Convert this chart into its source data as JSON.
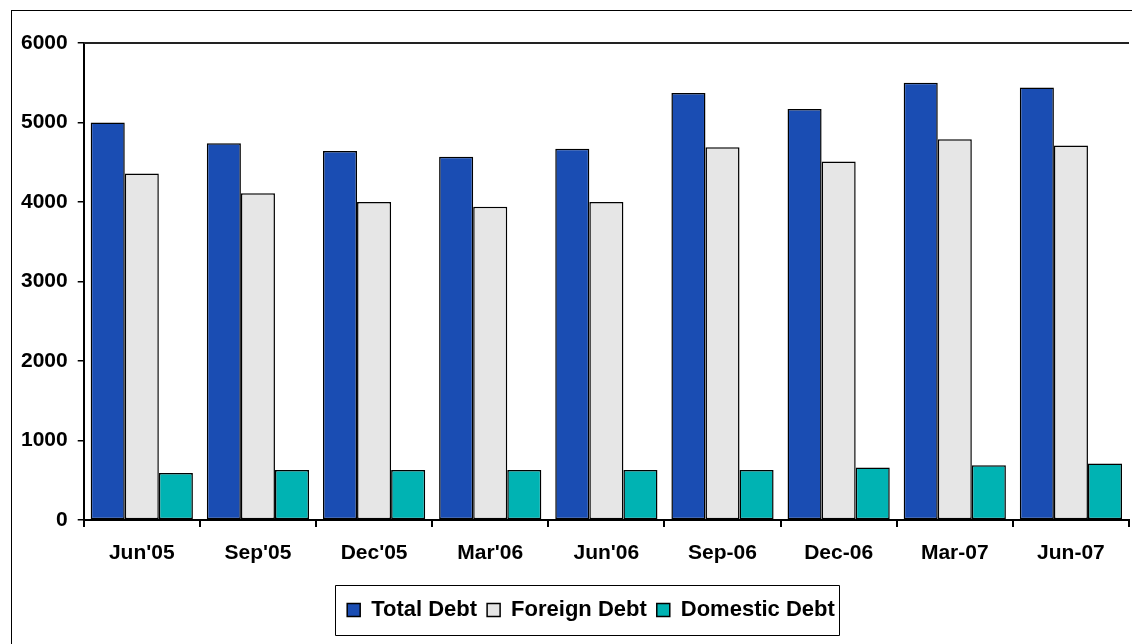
{
  "chart_data": {
    "type": "bar",
    "categories": [
      "Jun'05",
      "Sep'05",
      "Dec'05",
      "Mar'06",
      "Jun'06",
      "Sep-06",
      "Dec-06",
      "Mar-07",
      "Jun-07"
    ],
    "series": [
      {
        "name": "Total Debt",
        "color": "#1a4db3",
        "values": [
          5000,
          4740,
          4640,
          4570,
          4670,
          5370,
          5170,
          5500,
          5440
        ]
      },
      {
        "name": "Foreign Debt",
        "color": "#e6e6e6",
        "values": [
          4360,
          4110,
          4000,
          3940,
          4000,
          4690,
          4510,
          4790,
          4710
        ]
      },
      {
        "name": "Domestic Debt",
        "color": "#00b3b3",
        "values": [
          590,
          630,
          630,
          630,
          630,
          630,
          660,
          690,
          710
        ]
      }
    ],
    "ylim": [
      0,
      6000
    ],
    "yticks": [
      0,
      1000,
      2000,
      3000,
      4000,
      5000,
      6000
    ],
    "grid": false,
    "legend": "bottom"
  }
}
